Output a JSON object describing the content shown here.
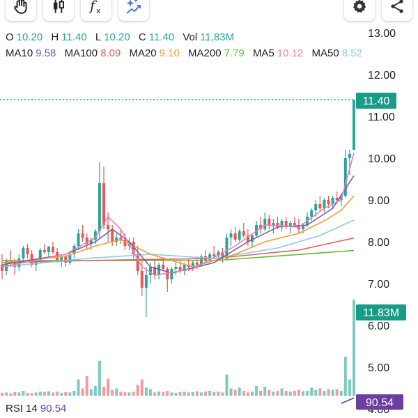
{
  "toolbar": {
    "left_icons": [
      "hand-gesture-icon",
      "candlestick-icon",
      "function-fx-icon",
      "sparkle-indicator-icon"
    ],
    "right_icons": [
      "gear-icon",
      "share-icon"
    ]
  },
  "ohlc": {
    "o_label": "O",
    "o_value": "10.20",
    "h_label": "H",
    "h_value": "11.40",
    "l_label": "L",
    "l_value": "10.20",
    "c_label": "C",
    "c_value": "11.40",
    "vol_label": "Vol",
    "vol_value": "11,83M"
  },
  "moving_averages": [
    {
      "label": "MA10",
      "value": "9.58",
      "color": "#7b5bb5"
    },
    {
      "label": "MA100",
      "value": "8.09",
      "color": "#e0605a"
    },
    {
      "label": "MA20",
      "value": "9.10",
      "color": "#f0a030"
    },
    {
      "label": "MA200",
      "value": "7.79",
      "color": "#66bb33"
    },
    {
      "label": "MA5",
      "value": "10.12",
      "color": "#e882b0"
    },
    {
      "label": "MA50",
      "value": "8.52",
      "color": "#88c8ec"
    }
  ],
  "rsi": {
    "label": "RSI 14",
    "value": "90.54",
    "color": "#6a3fa0"
  },
  "price_tag": "11.40",
  "volume_tag": "11.83M",
  "rsi_tag": "90.54",
  "colors": {
    "up": "#26a69a",
    "down": "#ef5350",
    "vol_up": "#7ccbbf",
    "vol_down": "#f59a98",
    "tag": "#1a9b86"
  },
  "chart_data": {
    "type": "candlestick",
    "y_ticks": [
      "13.00",
      "12.00",
      "11.00",
      "10.00",
      "9.00",
      "8.00",
      "7.00",
      "6.00",
      "5.00",
      "4.00"
    ],
    "ylim": [
      4.0,
      13.0
    ],
    "last_close": 11.4,
    "candles": [
      [
        7.45,
        7.7,
        7.1,
        7.3
      ],
      [
        7.3,
        7.6,
        7.2,
        7.55
      ],
      [
        7.55,
        7.8,
        7.4,
        7.5
      ],
      [
        7.5,
        7.6,
        7.2,
        7.4
      ],
      [
        7.4,
        7.7,
        7.3,
        7.6
      ],
      [
        7.6,
        7.9,
        7.5,
        7.85
      ],
      [
        7.85,
        7.95,
        7.6,
        7.7
      ],
      [
        7.7,
        7.8,
        7.4,
        7.45
      ],
      [
        7.45,
        7.6,
        7.3,
        7.55
      ],
      [
        7.55,
        7.85,
        7.5,
        7.8
      ],
      [
        7.8,
        7.95,
        7.7,
        7.75
      ],
      [
        7.75,
        7.9,
        7.6,
        7.88
      ],
      [
        7.88,
        8.0,
        7.7,
        7.75
      ],
      [
        7.75,
        7.85,
        7.5,
        7.55
      ],
      [
        7.55,
        7.7,
        7.4,
        7.65
      ],
      [
        7.65,
        7.7,
        7.4,
        7.5
      ],
      [
        7.5,
        7.75,
        7.45,
        7.7
      ],
      [
        7.7,
        7.95,
        7.6,
        7.9
      ],
      [
        7.9,
        8.3,
        7.8,
        8.2
      ],
      [
        8.2,
        8.4,
        8.0,
        8.1
      ],
      [
        8.1,
        8.2,
        7.8,
        7.95
      ],
      [
        7.95,
        8.1,
        7.8,
        8.05
      ],
      [
        8.05,
        8.3,
        7.95,
        8.25
      ],
      [
        8.25,
        9.9,
        8.1,
        9.4
      ],
      [
        9.4,
        9.8,
        8.3,
        8.4
      ],
      [
        8.4,
        8.7,
        8.0,
        8.3
      ],
      [
        8.3,
        8.4,
        7.9,
        8.0
      ],
      [
        8.0,
        8.2,
        7.9,
        8.1
      ],
      [
        8.1,
        8.3,
        7.95,
        8.05
      ],
      [
        8.05,
        8.2,
        7.8,
        7.9
      ],
      [
        7.9,
        8.1,
        7.8,
        8.0
      ],
      [
        8.0,
        8.1,
        7.6,
        7.7
      ],
      [
        7.7,
        7.9,
        7.2,
        7.3
      ],
      [
        7.3,
        7.6,
        6.7,
        6.9
      ],
      [
        6.9,
        7.4,
        6.2,
        7.2
      ],
      [
        7.2,
        7.5,
        7.0,
        7.4
      ],
      [
        7.4,
        7.55,
        7.1,
        7.2
      ],
      [
        7.2,
        7.5,
        7.1,
        7.45
      ],
      [
        7.45,
        7.6,
        7.3,
        7.35
      ],
      [
        7.35,
        7.4,
        6.8,
        7.1
      ],
      [
        7.1,
        7.4,
        7.0,
        7.35
      ],
      [
        7.35,
        7.5,
        7.2,
        7.4
      ],
      [
        7.4,
        7.55,
        7.25,
        7.3
      ],
      [
        7.3,
        7.5,
        7.2,
        7.45
      ],
      [
        7.45,
        7.6,
        7.3,
        7.4
      ],
      [
        7.4,
        7.55,
        7.3,
        7.5
      ],
      [
        7.5,
        7.65,
        7.35,
        7.45
      ],
      [
        7.45,
        7.7,
        7.4,
        7.65
      ],
      [
        7.65,
        7.8,
        7.5,
        7.55
      ],
      [
        7.55,
        7.75,
        7.5,
        7.7
      ],
      [
        7.7,
        7.9,
        7.6,
        7.65
      ],
      [
        7.65,
        7.8,
        7.55,
        7.75
      ],
      [
        7.75,
        7.85,
        7.5,
        7.6
      ],
      [
        7.6,
        8.2,
        7.55,
        8.1
      ],
      [
        8.1,
        8.3,
        7.9,
        8.2
      ],
      [
        8.2,
        8.35,
        8.0,
        8.05
      ],
      [
        8.05,
        8.3,
        8.0,
        8.25
      ],
      [
        8.25,
        8.45,
        8.1,
        8.15
      ],
      [
        8.15,
        8.3,
        7.9,
        8.0
      ],
      [
        8.0,
        8.2,
        7.85,
        8.15
      ],
      [
        8.15,
        8.5,
        8.1,
        8.4
      ],
      [
        8.4,
        8.6,
        8.2,
        8.3
      ],
      [
        8.3,
        8.7,
        8.25,
        8.55
      ],
      [
        8.55,
        8.65,
        8.3,
        8.4
      ],
      [
        8.4,
        8.55,
        8.2,
        8.45
      ],
      [
        8.45,
        8.6,
        8.3,
        8.35
      ],
      [
        8.35,
        8.55,
        8.25,
        8.5
      ],
      [
        8.5,
        8.6,
        8.3,
        8.35
      ],
      [
        8.35,
        8.5,
        8.2,
        8.45
      ],
      [
        8.45,
        8.6,
        8.35,
        8.4
      ],
      [
        8.4,
        8.55,
        8.2,
        8.3
      ],
      [
        8.3,
        8.45,
        8.2,
        8.4
      ],
      [
        8.4,
        8.7,
        8.35,
        8.6
      ],
      [
        8.6,
        8.8,
        8.5,
        8.75
      ],
      [
        8.75,
        9.0,
        8.6,
        8.9
      ],
      [
        8.9,
        9.1,
        8.7,
        8.8
      ],
      [
        8.8,
        9.05,
        8.7,
        9.0
      ],
      [
        9.0,
        9.1,
        8.8,
        8.9
      ],
      [
        8.9,
        9.1,
        8.8,
        9.05
      ],
      [
        9.05,
        9.2,
        8.9,
        9.0
      ],
      [
        9.0,
        9.15,
        8.85,
        9.1
      ],
      [
        9.1,
        10.2,
        9.05,
        10.0
      ],
      [
        10.0,
        10.2,
        9.6,
        10.1
      ],
      [
        10.2,
        11.4,
        10.2,
        11.4
      ]
    ],
    "volume": [
      0.35,
      0.4,
      0.3,
      0.45,
      0.4,
      0.6,
      0.35,
      0.3,
      0.4,
      0.5,
      0.45,
      0.55,
      0.4,
      0.5,
      0.35,
      0.45,
      0.4,
      0.6,
      2.0,
      0.9,
      2.4,
      0.8,
      1.2,
      4.3,
      1.1,
      2.1,
      0.7,
      0.9,
      0.5,
      0.45,
      0.4,
      0.5,
      1.3,
      2.0,
      1.0,
      0.8,
      0.4,
      0.5,
      0.45,
      0.6,
      0.4,
      0.35,
      0.45,
      0.5,
      0.4,
      0.45,
      0.55,
      0.4,
      0.5,
      0.6,
      0.45,
      0.5,
      0.4,
      2.6,
      0.9,
      0.7,
      1.0,
      0.6,
      0.4,
      0.5,
      1.2,
      0.6,
      1.1,
      0.7,
      0.5,
      0.6,
      0.9,
      0.6,
      0.5,
      0.6,
      0.7,
      0.55,
      0.6,
      1.0,
      0.7,
      0.9,
      0.6,
      0.8,
      0.7,
      0.8,
      0.6,
      4.8,
      2.0,
      11.83
    ],
    "ma_lines": [
      {
        "name": "MA200",
        "color": "#66bb33",
        "points": [
          [
            0,
            7.55
          ],
          [
            50,
            7.55
          ],
          [
            83,
            7.79
          ]
        ]
      },
      {
        "name": "MA100",
        "color": "#e0605a",
        "points": [
          [
            0,
            7.5
          ],
          [
            20,
            7.55
          ],
          [
            50,
            7.6
          ],
          [
            70,
            7.8
          ],
          [
            83,
            8.09
          ]
        ]
      },
      {
        "name": "MA50",
        "color": "#88c8ec",
        "points": [
          [
            0,
            7.4
          ],
          [
            20,
            7.6
          ],
          [
            35,
            7.7
          ],
          [
            50,
            7.6
          ],
          [
            65,
            7.85
          ],
          [
            75,
            8.15
          ],
          [
            83,
            8.52
          ]
        ]
      },
      {
        "name": "MA20",
        "color": "#f0a030",
        "points": [
          [
            0,
            7.5
          ],
          [
            15,
            7.65
          ],
          [
            22,
            7.9
          ],
          [
            28,
            8.05
          ],
          [
            35,
            7.7
          ],
          [
            45,
            7.4
          ],
          [
            55,
            7.7
          ],
          [
            62,
            8.0
          ],
          [
            70,
            8.2
          ],
          [
            76,
            8.5
          ],
          [
            80,
            8.75
          ],
          [
            83,
            9.1
          ]
        ]
      },
      {
        "name": "MA10",
        "color": "#7b5bb5",
        "points": [
          [
            0,
            7.45
          ],
          [
            15,
            7.7
          ],
          [
            22,
            8.0
          ],
          [
            26,
            8.3
          ],
          [
            30,
            8.0
          ],
          [
            35,
            7.4
          ],
          [
            40,
            7.25
          ],
          [
            50,
            7.5
          ],
          [
            58,
            8.0
          ],
          [
            65,
            8.35
          ],
          [
            72,
            8.4
          ],
          [
            78,
            8.8
          ],
          [
            83,
            9.58
          ]
        ]
      },
      {
        "name": "MA5",
        "color": "#e882b0",
        "points": [
          [
            0,
            7.4
          ],
          [
            15,
            7.7
          ],
          [
            22,
            8.1
          ],
          [
            25,
            8.6
          ],
          [
            28,
            8.3
          ],
          [
            33,
            7.4
          ],
          [
            36,
            7.2
          ],
          [
            45,
            7.35
          ],
          [
            55,
            7.9
          ],
          [
            62,
            8.4
          ],
          [
            70,
            8.35
          ],
          [
            76,
            8.8
          ],
          [
            80,
            9.0
          ],
          [
            83,
            10.12
          ]
        ]
      }
    ],
    "rsi_series": [
      [
        80,
        85.0
      ],
      [
        83,
        90.54
      ]
    ]
  }
}
